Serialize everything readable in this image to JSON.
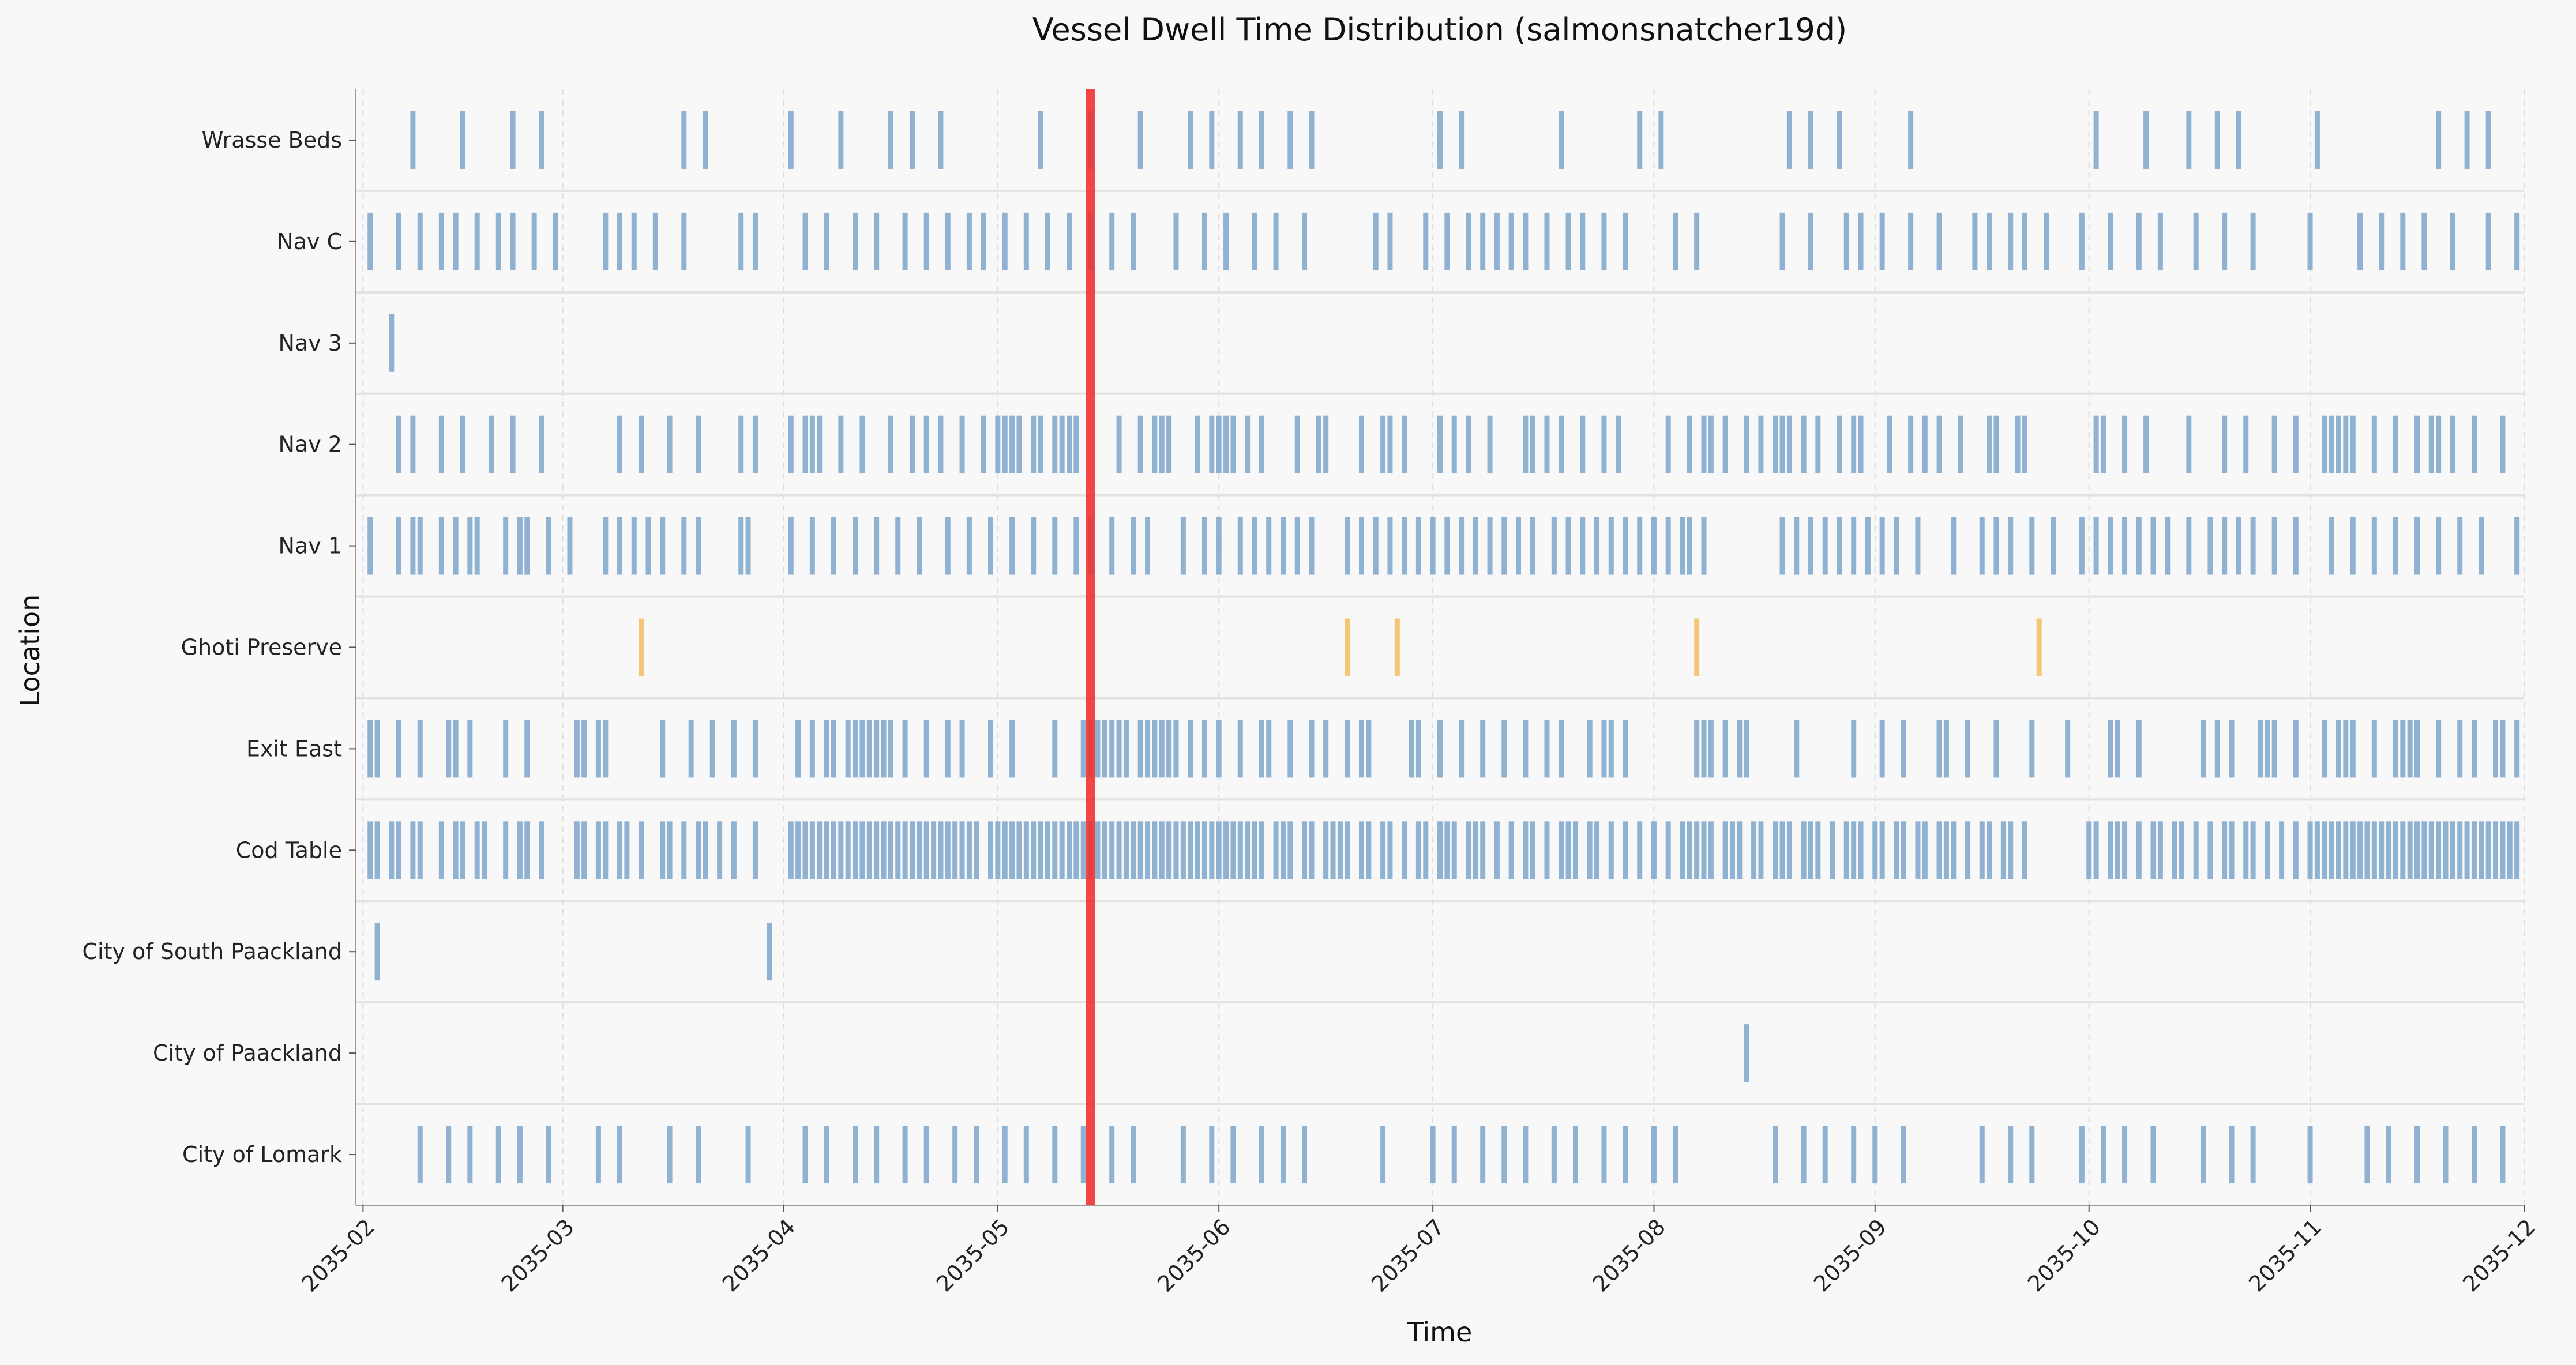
{
  "chart_data": {
    "type": "event_timeline",
    "title": "Vessel Dwell Time Distribution (salmonsnatcher19d)",
    "xlabel": "Time",
    "ylabel": "Location",
    "x_ticks": [
      "2035-02",
      "2035-03",
      "2035-04",
      "2035-05",
      "2035-06",
      "2035-07",
      "2035-08",
      "2035-09",
      "2035-10",
      "2035-11",
      "2035-12"
    ],
    "xlim": [
      "2035-01-31",
      "2035-12-01"
    ],
    "grid": "x dashed",
    "marker": {
      "date": "2035-05-14",
      "color": "#f03232"
    },
    "colors": {
      "default": "#6e9bc5",
      "highlight": "#f5b64b",
      "marker": "#f03232"
    },
    "locations": [
      {
        "name": "Wrasse Beds",
        "highlight": false,
        "events": [
          "2035-02-08",
          "2035-02-15",
          "2035-02-22",
          "2035-02-26",
          "2035-03-18",
          "2035-03-21",
          "2035-04-02",
          "2035-04-09",
          "2035-04-16",
          "2035-04-19",
          "2035-04-23",
          "2035-05-07",
          "2035-05-14",
          "2035-05-21",
          "2035-05-28",
          "2035-05-31",
          "2035-06-04",
          "2035-06-07",
          "2035-06-11",
          "2035-06-14",
          "2035-07-02",
          "2035-07-05",
          "2035-07-19",
          "2035-07-30",
          "2035-08-02",
          "2035-08-20",
          "2035-08-23",
          "2035-08-27",
          "2035-09-06",
          "2035-10-02",
          "2035-10-09",
          "2035-10-15",
          "2035-10-19",
          "2035-10-22",
          "2035-11-02",
          "2035-11-19",
          "2035-11-23",
          "2035-11-26"
        ]
      },
      {
        "name": "Nav C",
        "highlight": false,
        "events": [
          "2035-02-02",
          "2035-02-06",
          "2035-02-09",
          "2035-02-12",
          "2035-02-14",
          "2035-02-17",
          "2035-02-20",
          "2035-02-22",
          "2035-02-25",
          "2035-02-28",
          "2035-03-07",
          "2035-03-09",
          "2035-03-11",
          "2035-03-14",
          "2035-03-18",
          "2035-03-26",
          "2035-03-28",
          "2035-04-04",
          "2035-04-07",
          "2035-04-11",
          "2035-04-14",
          "2035-04-18",
          "2035-04-21",
          "2035-04-24",
          "2035-04-27",
          "2035-04-29",
          "2035-05-02",
          "2035-05-05",
          "2035-05-08",
          "2035-05-11",
          "2035-05-14",
          "2035-05-17",
          "2035-05-20",
          "2035-05-26",
          "2035-05-30",
          "2035-06-02",
          "2035-06-06",
          "2035-06-09",
          "2035-06-13",
          "2035-06-23",
          "2035-06-25",
          "2035-06-30",
          "2035-07-03",
          "2035-07-06",
          "2035-07-08",
          "2035-07-10",
          "2035-07-12",
          "2035-07-14",
          "2035-07-17",
          "2035-07-20",
          "2035-07-22",
          "2035-07-25",
          "2035-07-28",
          "2035-08-04",
          "2035-08-07",
          "2035-08-19",
          "2035-08-23",
          "2035-08-28",
          "2035-08-30",
          "2035-09-02",
          "2035-09-06",
          "2035-09-10",
          "2035-09-15",
          "2035-09-17",
          "2035-09-20",
          "2035-09-22",
          "2035-09-25",
          "2035-09-30",
          "2035-10-04",
          "2035-10-08",
          "2035-10-11",
          "2035-10-16",
          "2035-10-20",
          "2035-10-24",
          "2035-11-01",
          "2035-11-08",
          "2035-11-11",
          "2035-11-14",
          "2035-11-17",
          "2035-11-21",
          "2035-11-26",
          "2035-11-30"
        ]
      },
      {
        "name": "Nav 3",
        "highlight": false,
        "events": [
          "2035-02-05"
        ]
      },
      {
        "name": "Nav 2",
        "highlight": false,
        "events": [
          "2035-02-06",
          "2035-02-08",
          "2035-02-12",
          "2035-02-15",
          "2035-02-19",
          "2035-02-22",
          "2035-02-26",
          "2035-03-09",
          "2035-03-12",
          "2035-03-16",
          "2035-03-20",
          "2035-03-26",
          "2035-03-28",
          "2035-04-02",
          "2035-04-04",
          "2035-04-05",
          "2035-04-06",
          "2035-04-09",
          "2035-04-12",
          "2035-04-16",
          "2035-04-19",
          "2035-04-21",
          "2035-04-23",
          "2035-04-26",
          "2035-04-29",
          "2035-05-01",
          "2035-05-02",
          "2035-05-03",
          "2035-05-04",
          "2035-05-06",
          "2035-05-07",
          "2035-05-09",
          "2035-05-10",
          "2035-05-11",
          "2035-05-12",
          "2035-05-18",
          "2035-05-21",
          "2035-05-23",
          "2035-05-24",
          "2035-05-25",
          "2035-05-29",
          "2035-05-31",
          "2035-06-01",
          "2035-06-02",
          "2035-06-03",
          "2035-06-05",
          "2035-06-07",
          "2035-06-12",
          "2035-06-15",
          "2035-06-16",
          "2035-06-21",
          "2035-06-24",
          "2035-06-25",
          "2035-06-27",
          "2035-07-02",
          "2035-07-04",
          "2035-07-06",
          "2035-07-09",
          "2035-07-14",
          "2035-07-15",
          "2035-07-17",
          "2035-07-19",
          "2035-07-22",
          "2035-07-25",
          "2035-07-27",
          "2035-08-03",
          "2035-08-06",
          "2035-08-08",
          "2035-08-09",
          "2035-08-11",
          "2035-08-14",
          "2035-08-16",
          "2035-08-18",
          "2035-08-19",
          "2035-08-20",
          "2035-08-22",
          "2035-08-24",
          "2035-08-27",
          "2035-08-29",
          "2035-08-30",
          "2035-09-03",
          "2035-09-06",
          "2035-09-08",
          "2035-09-10",
          "2035-09-13",
          "2035-09-17",
          "2035-09-18",
          "2035-09-21",
          "2035-09-22",
          "2035-10-02",
          "2035-10-03",
          "2035-10-06",
          "2035-10-09",
          "2035-10-15",
          "2035-10-20",
          "2035-10-23",
          "2035-10-27",
          "2035-10-30",
          "2035-11-03",
          "2035-11-04",
          "2035-11-05",
          "2035-11-06",
          "2035-11-07",
          "2035-11-10",
          "2035-11-13",
          "2035-11-16",
          "2035-11-18",
          "2035-11-19",
          "2035-11-21",
          "2035-11-24",
          "2035-11-28"
        ]
      },
      {
        "name": "Nav 1",
        "highlight": false,
        "events": [
          "2035-02-02",
          "2035-02-06",
          "2035-02-08",
          "2035-02-09",
          "2035-02-12",
          "2035-02-14",
          "2035-02-16",
          "2035-02-17",
          "2035-02-21",
          "2035-02-23",
          "2035-02-24",
          "2035-02-27",
          "2035-03-02",
          "2035-03-07",
          "2035-03-09",
          "2035-03-11",
          "2035-03-13",
          "2035-03-15",
          "2035-03-18",
          "2035-03-20",
          "2035-03-26",
          "2035-03-27",
          "2035-04-02",
          "2035-04-05",
          "2035-04-08",
          "2035-04-11",
          "2035-04-14",
          "2035-04-17",
          "2035-04-20",
          "2035-04-24",
          "2035-04-27",
          "2035-04-30",
          "2035-05-03",
          "2035-05-06",
          "2035-05-09",
          "2035-05-12",
          "2035-05-14",
          "2035-05-17",
          "2035-05-20",
          "2035-05-22",
          "2035-05-27",
          "2035-05-30",
          "2035-06-01",
          "2035-06-04",
          "2035-06-06",
          "2035-06-08",
          "2035-06-10",
          "2035-06-12",
          "2035-06-14",
          "2035-06-19",
          "2035-06-21",
          "2035-06-23",
          "2035-06-25",
          "2035-06-27",
          "2035-06-29",
          "2035-07-01",
          "2035-07-03",
          "2035-07-05",
          "2035-07-07",
          "2035-07-09",
          "2035-07-11",
          "2035-07-13",
          "2035-07-15",
          "2035-07-18",
          "2035-07-20",
          "2035-07-22",
          "2035-07-24",
          "2035-07-26",
          "2035-07-28",
          "2035-07-30",
          "2035-08-01",
          "2035-08-03",
          "2035-08-05",
          "2035-08-06",
          "2035-08-08",
          "2035-08-19",
          "2035-08-21",
          "2035-08-23",
          "2035-08-25",
          "2035-08-27",
          "2035-08-29",
          "2035-08-31",
          "2035-09-02",
          "2035-09-04",
          "2035-09-07",
          "2035-09-12",
          "2035-09-16",
          "2035-09-18",
          "2035-09-20",
          "2035-09-23",
          "2035-09-26",
          "2035-09-30",
          "2035-10-02",
          "2035-10-04",
          "2035-10-06",
          "2035-10-08",
          "2035-10-10",
          "2035-10-12",
          "2035-10-15",
          "2035-10-18",
          "2035-10-20",
          "2035-10-22",
          "2035-10-24",
          "2035-10-27",
          "2035-10-30",
          "2035-11-04",
          "2035-11-07",
          "2035-11-10",
          "2035-11-13",
          "2035-11-16",
          "2035-11-19",
          "2035-11-22",
          "2035-11-25",
          "2035-11-30"
        ]
      },
      {
        "name": "Ghoti Preserve",
        "highlight": true,
        "events": [
          "2035-03-12",
          "2035-06-19",
          "2035-06-26",
          "2035-08-07",
          "2035-09-24"
        ]
      },
      {
        "name": "Exit East",
        "highlight": false,
        "events": [
          "2035-02-02",
          "2035-02-03",
          "2035-02-06",
          "2035-02-09",
          "2035-02-13",
          "2035-02-14",
          "2035-02-16",
          "2035-02-21",
          "2035-02-24",
          "2035-03-03",
          "2035-03-04",
          "2035-03-06",
          "2035-03-07",
          "2035-03-15",
          "2035-03-19",
          "2035-03-22",
          "2035-03-25",
          "2035-03-28",
          "2035-04-03",
          "2035-04-05",
          "2035-04-07",
          "2035-04-08",
          "2035-04-10",
          "2035-04-11",
          "2035-04-12",
          "2035-04-13",
          "2035-04-14",
          "2035-04-15",
          "2035-04-16",
          "2035-04-18",
          "2035-04-21",
          "2035-04-24",
          "2035-04-26",
          "2035-04-30",
          "2035-05-03",
          "2035-05-09",
          "2035-05-13",
          "2035-05-14",
          "2035-05-15",
          "2035-05-16",
          "2035-05-17",
          "2035-05-18",
          "2035-05-19",
          "2035-05-21",
          "2035-05-22",
          "2035-05-23",
          "2035-05-24",
          "2035-05-25",
          "2035-05-26",
          "2035-05-28",
          "2035-05-30",
          "2035-06-01",
          "2035-06-04",
          "2035-06-07",
          "2035-06-08",
          "2035-06-11",
          "2035-06-14",
          "2035-06-16",
          "2035-06-19",
          "2035-06-21",
          "2035-06-22",
          "2035-06-28",
          "2035-06-29",
          "2035-07-02",
          "2035-07-05",
          "2035-07-08",
          "2035-07-11",
          "2035-07-14",
          "2035-07-17",
          "2035-07-19",
          "2035-07-23",
          "2035-07-25",
          "2035-07-26",
          "2035-07-28",
          "2035-08-07",
          "2035-08-08",
          "2035-08-09",
          "2035-08-11",
          "2035-08-13",
          "2035-08-14",
          "2035-08-21",
          "2035-08-29",
          "2035-09-02",
          "2035-09-05",
          "2035-09-10",
          "2035-09-11",
          "2035-09-14",
          "2035-09-18",
          "2035-09-23",
          "2035-09-28",
          "2035-10-04",
          "2035-10-05",
          "2035-10-08",
          "2035-10-17",
          "2035-10-19",
          "2035-10-21",
          "2035-10-25",
          "2035-10-26",
          "2035-10-27",
          "2035-10-30",
          "2035-11-03",
          "2035-11-05",
          "2035-11-06",
          "2035-11-07",
          "2035-11-10",
          "2035-11-13",
          "2035-11-14",
          "2035-11-15",
          "2035-11-16",
          "2035-11-19",
          "2035-11-22",
          "2035-11-24",
          "2035-11-27",
          "2035-11-28",
          "2035-11-30"
        ]
      },
      {
        "name": "Cod Table",
        "highlight": false,
        "events": [
          "2035-02-02",
          "2035-02-03",
          "2035-02-05",
          "2035-02-06",
          "2035-02-08",
          "2035-02-09",
          "2035-02-12",
          "2035-02-14",
          "2035-02-15",
          "2035-02-17",
          "2035-02-18",
          "2035-02-21",
          "2035-02-23",
          "2035-02-24",
          "2035-02-26",
          "2035-03-03",
          "2035-03-04",
          "2035-03-06",
          "2035-03-07",
          "2035-03-09",
          "2035-03-10",
          "2035-03-12",
          "2035-03-15",
          "2035-03-16",
          "2035-03-18",
          "2035-03-20",
          "2035-03-21",
          "2035-03-23",
          "2035-03-25",
          "2035-03-28",
          "2035-04-02",
          "2035-04-03",
          "2035-04-04",
          "2035-04-05",
          "2035-04-06",
          "2035-04-07",
          "2035-04-08",
          "2035-04-09",
          "2035-04-10",
          "2035-04-11",
          "2035-04-12",
          "2035-04-13",
          "2035-04-14",
          "2035-04-15",
          "2035-04-16",
          "2035-04-17",
          "2035-04-18",
          "2035-04-19",
          "2035-04-20",
          "2035-04-21",
          "2035-04-22",
          "2035-04-23",
          "2035-04-24",
          "2035-04-25",
          "2035-04-26",
          "2035-04-27",
          "2035-04-28",
          "2035-04-30",
          "2035-05-01",
          "2035-05-02",
          "2035-05-03",
          "2035-05-04",
          "2035-05-05",
          "2035-05-06",
          "2035-05-07",
          "2035-05-08",
          "2035-05-09",
          "2035-05-10",
          "2035-05-11",
          "2035-05-12",
          "2035-05-13",
          "2035-05-14",
          "2035-05-15",
          "2035-05-16",
          "2035-05-17",
          "2035-05-18",
          "2035-05-19",
          "2035-05-20",
          "2035-05-21",
          "2035-05-22",
          "2035-05-23",
          "2035-05-24",
          "2035-05-25",
          "2035-05-26",
          "2035-05-27",
          "2035-05-28",
          "2035-05-29",
          "2035-05-30",
          "2035-05-31",
          "2035-06-01",
          "2035-06-02",
          "2035-06-03",
          "2035-06-04",
          "2035-06-05",
          "2035-06-06",
          "2035-06-07",
          "2035-06-09",
          "2035-06-10",
          "2035-06-11",
          "2035-06-13",
          "2035-06-14",
          "2035-06-16",
          "2035-06-17",
          "2035-06-18",
          "2035-06-19",
          "2035-06-21",
          "2035-06-22",
          "2035-06-24",
          "2035-06-25",
          "2035-06-27",
          "2035-06-29",
          "2035-06-30",
          "2035-07-02",
          "2035-07-03",
          "2035-07-04",
          "2035-07-06",
          "2035-07-07",
          "2035-07-08",
          "2035-07-10",
          "2035-07-12",
          "2035-07-14",
          "2035-07-15",
          "2035-07-17",
          "2035-07-19",
          "2035-07-20",
          "2035-07-21",
          "2035-07-23",
          "2035-07-24",
          "2035-07-26",
          "2035-07-28",
          "2035-07-30",
          "2035-08-01",
          "2035-08-03",
          "2035-08-05",
          "2035-08-06",
          "2035-08-07",
          "2035-08-08",
          "2035-08-09",
          "2035-08-11",
          "2035-08-12",
          "2035-08-13",
          "2035-08-15",
          "2035-08-16",
          "2035-08-18",
          "2035-08-19",
          "2035-08-20",
          "2035-08-22",
          "2035-08-23",
          "2035-08-24",
          "2035-08-26",
          "2035-08-28",
          "2035-08-29",
          "2035-08-30",
          "2035-09-01",
          "2035-09-02",
          "2035-09-04",
          "2035-09-05",
          "2035-09-07",
          "2035-09-08",
          "2035-09-10",
          "2035-09-11",
          "2035-09-12",
          "2035-09-14",
          "2035-09-16",
          "2035-09-17",
          "2035-09-19",
          "2035-09-20",
          "2035-09-22",
          "2035-10-01",
          "2035-10-02",
          "2035-10-04",
          "2035-10-05",
          "2035-10-06",
          "2035-10-08",
          "2035-10-10",
          "2035-10-11",
          "2035-10-13",
          "2035-10-14",
          "2035-10-16",
          "2035-10-18",
          "2035-10-20",
          "2035-10-21",
          "2035-10-23",
          "2035-10-24",
          "2035-10-26",
          "2035-10-28",
          "2035-10-30",
          "2035-11-01",
          "2035-11-02",
          "2035-11-03",
          "2035-11-04",
          "2035-11-05",
          "2035-11-06",
          "2035-11-07",
          "2035-11-08",
          "2035-11-09",
          "2035-11-10",
          "2035-11-11",
          "2035-11-12",
          "2035-11-13",
          "2035-11-14",
          "2035-11-15",
          "2035-11-16",
          "2035-11-17",
          "2035-11-18",
          "2035-11-19",
          "2035-11-20",
          "2035-11-21",
          "2035-11-22",
          "2035-11-23",
          "2035-11-24",
          "2035-11-25",
          "2035-11-26",
          "2035-11-27",
          "2035-11-28",
          "2035-11-29",
          "2035-11-30"
        ]
      },
      {
        "name": "City of South Paackland",
        "highlight": false,
        "events": [
          "2035-02-03",
          "2035-03-30"
        ]
      },
      {
        "name": "City of Paackland",
        "highlight": false,
        "events": [
          "2035-08-14"
        ]
      },
      {
        "name": "City of Lomark",
        "highlight": false,
        "events": [
          "2035-02-09",
          "2035-02-13",
          "2035-02-16",
          "2035-02-20",
          "2035-02-23",
          "2035-02-27",
          "2035-03-06",
          "2035-03-09",
          "2035-03-16",
          "2035-03-20",
          "2035-03-27",
          "2035-04-04",
          "2035-04-07",
          "2035-04-11",
          "2035-04-14",
          "2035-04-18",
          "2035-04-21",
          "2035-04-25",
          "2035-04-28",
          "2035-05-02",
          "2035-05-05",
          "2035-05-09",
          "2035-05-13",
          "2035-05-17",
          "2035-05-20",
          "2035-05-27",
          "2035-05-31",
          "2035-06-03",
          "2035-06-07",
          "2035-06-10",
          "2035-06-13",
          "2035-06-24",
          "2035-07-01",
          "2035-07-04",
          "2035-07-08",
          "2035-07-11",
          "2035-07-14",
          "2035-07-18",
          "2035-07-21",
          "2035-07-25",
          "2035-07-28",
          "2035-08-01",
          "2035-08-04",
          "2035-08-18",
          "2035-08-22",
          "2035-08-25",
          "2035-08-29",
          "2035-09-01",
          "2035-09-05",
          "2035-09-16",
          "2035-09-20",
          "2035-09-23",
          "2035-09-30",
          "2035-10-03",
          "2035-10-06",
          "2035-10-10",
          "2035-10-17",
          "2035-10-21",
          "2035-10-24",
          "2035-11-01",
          "2035-11-09",
          "2035-11-12",
          "2035-11-16",
          "2035-11-20",
          "2035-11-24",
          "2035-11-28"
        ]
      }
    ]
  }
}
